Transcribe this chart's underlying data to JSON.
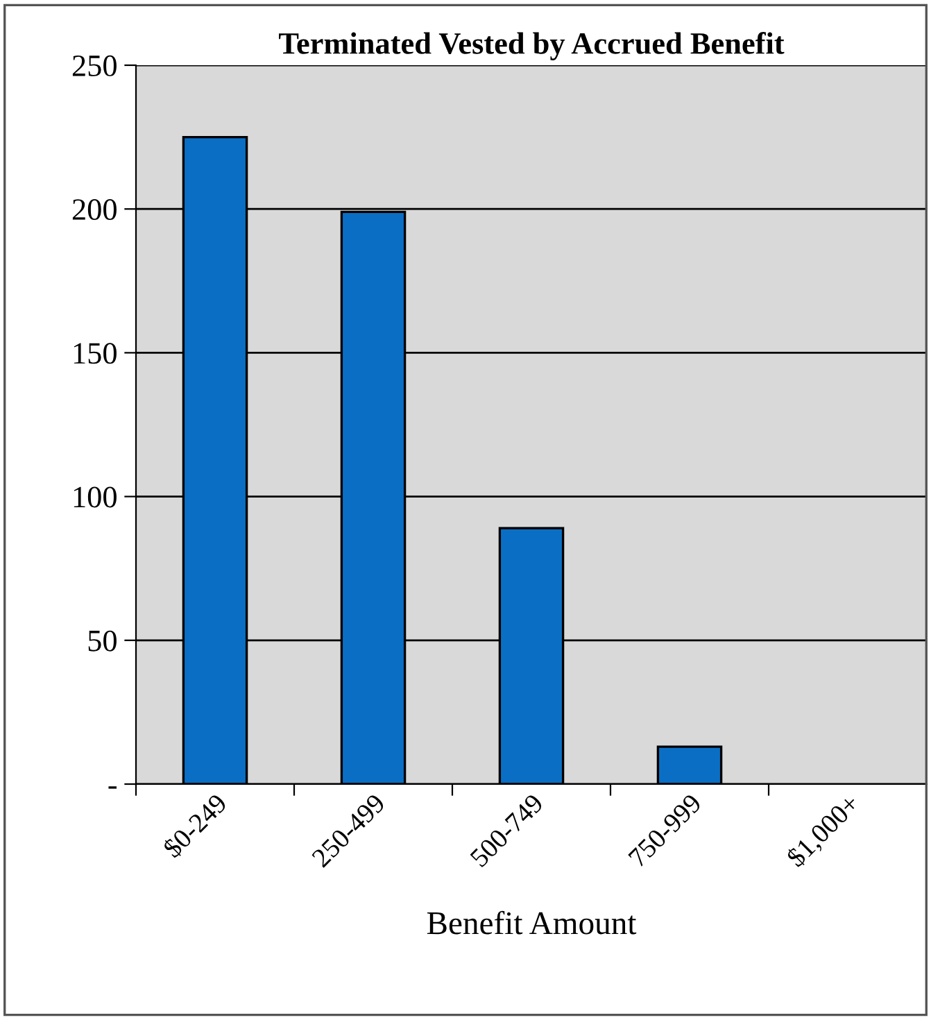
{
  "chart_data": {
    "type": "bar",
    "title": "Terminated Vested by Accrued Benefit",
    "xlabel": "Benefit Amount",
    "categories": [
      "$0-249",
      "250-499",
      "500-749",
      "750-999",
      "$1,000+"
    ],
    "values": [
      225,
      199,
      89,
      13,
      0
    ],
    "color": "#0a6fc4",
    "ylim": [
      0,
      250
    ],
    "yticks": [
      {
        "value": 0,
        "label": "-"
      },
      50,
      100,
      150,
      200,
      250
    ],
    "grid": "y"
  }
}
